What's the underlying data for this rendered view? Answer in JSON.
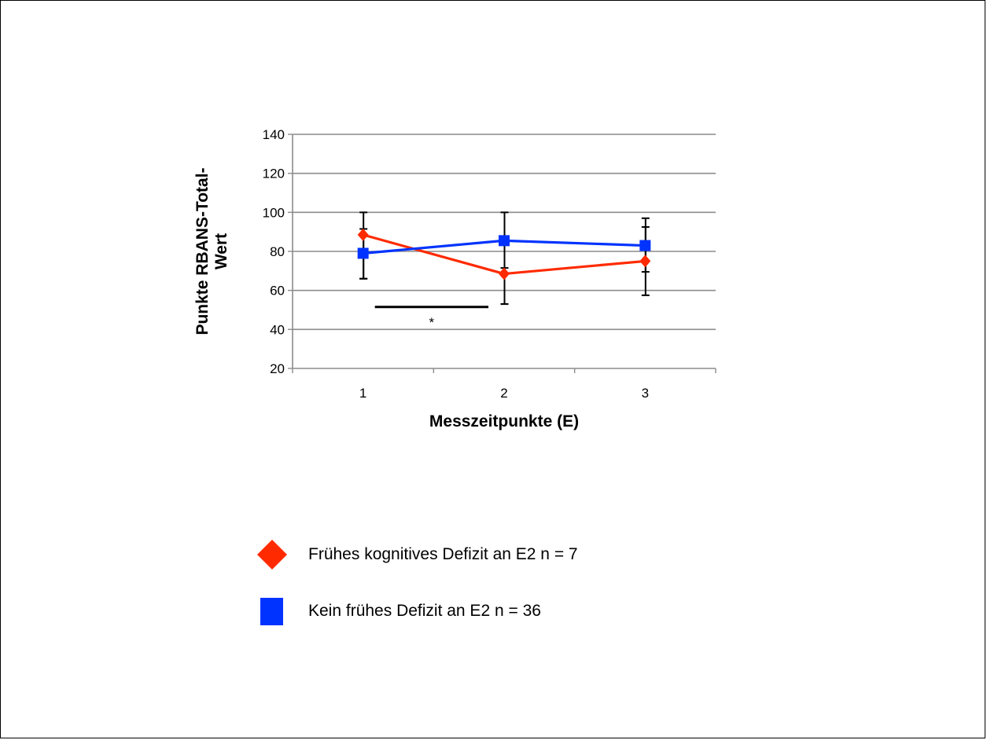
{
  "chart_data": {
    "type": "line",
    "xlabel": "Messzeitpunkte (E)",
    "ylabel_lines": [
      "Punkte RBANS-Total-",
      "Wert"
    ],
    "categories": [
      "1",
      "2",
      "3"
    ],
    "ylim": [
      20,
      140
    ],
    "yticks": [
      20,
      40,
      60,
      80,
      100,
      120,
      140
    ],
    "grid": true,
    "series": [
      {
        "name": "Frühes kognitives Defizit an E2 n = 7",
        "color": "#ff2a00",
        "marker": "diamond",
        "values": [
          88.5,
          68.5,
          75
        ],
        "err_low": [
          66,
          53,
          57.5
        ],
        "err_high": [
          91.5,
          71.5,
          92.5
        ]
      },
      {
        "name": "Kein frühes Defizit an E2 n = 36",
        "color": "#0033ff",
        "marker": "square",
        "values": [
          79,
          85.5,
          83
        ],
        "err_low": [
          66,
          53,
          69.5
        ],
        "err_high": [
          100,
          100,
          97
        ]
      }
    ],
    "significance": {
      "from": 1,
      "to": 2,
      "label": "*"
    }
  },
  "legend": [
    {
      "label": "Frühes kognitives Defizit an E2 n = 7",
      "color": "#ff2a00",
      "marker": "diamond-icon"
    },
    {
      "label": "Kein frühes Defizit an E2 n = 36",
      "color": "#0033ff",
      "marker": "square-icon"
    }
  ]
}
